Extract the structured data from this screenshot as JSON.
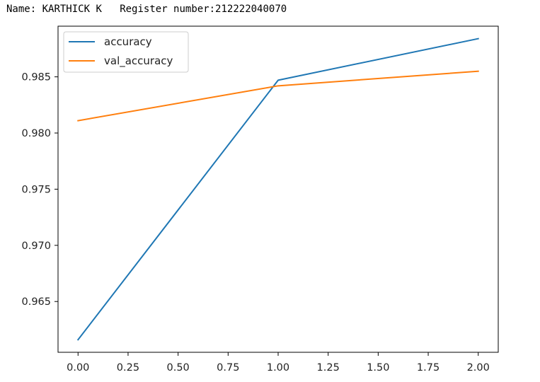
{
  "header": {
    "name_label": "Name:",
    "name_value": "KARTHICK K",
    "register_label": "Register number:",
    "register_value": "212222040070"
  },
  "chart_data": {
    "type": "line",
    "title": "",
    "xlabel": "",
    "ylabel": "",
    "x": [
      0,
      1,
      2
    ],
    "series": [
      {
        "name": "accuracy",
        "color": "#1f77b4",
        "values": [
          0.9616,
          0.9847,
          0.9884
        ]
      },
      {
        "name": "val_accuracy",
        "color": "#ff7f0e",
        "values": [
          0.9811,
          0.9842,
          0.9855
        ]
      }
    ],
    "xlim": [
      -0.1,
      2.1
    ],
    "ylim": [
      0.96048,
      0.98951
    ],
    "xticks": [
      0.0,
      0.25,
      0.5,
      0.75,
      1.0,
      1.25,
      1.5,
      1.75,
      2.0
    ],
    "xtick_labels": [
      "0.00",
      "0.25",
      "0.50",
      "0.75",
      "1.00",
      "1.25",
      "1.50",
      "1.75",
      "2.00"
    ],
    "yticks": [
      0.965,
      0.97,
      0.975,
      0.98,
      0.985
    ],
    "ytick_labels": [
      "0.965",
      "0.970",
      "0.975",
      "0.980",
      "0.985"
    ],
    "grid": false,
    "legend_position": "upper-left"
  }
}
